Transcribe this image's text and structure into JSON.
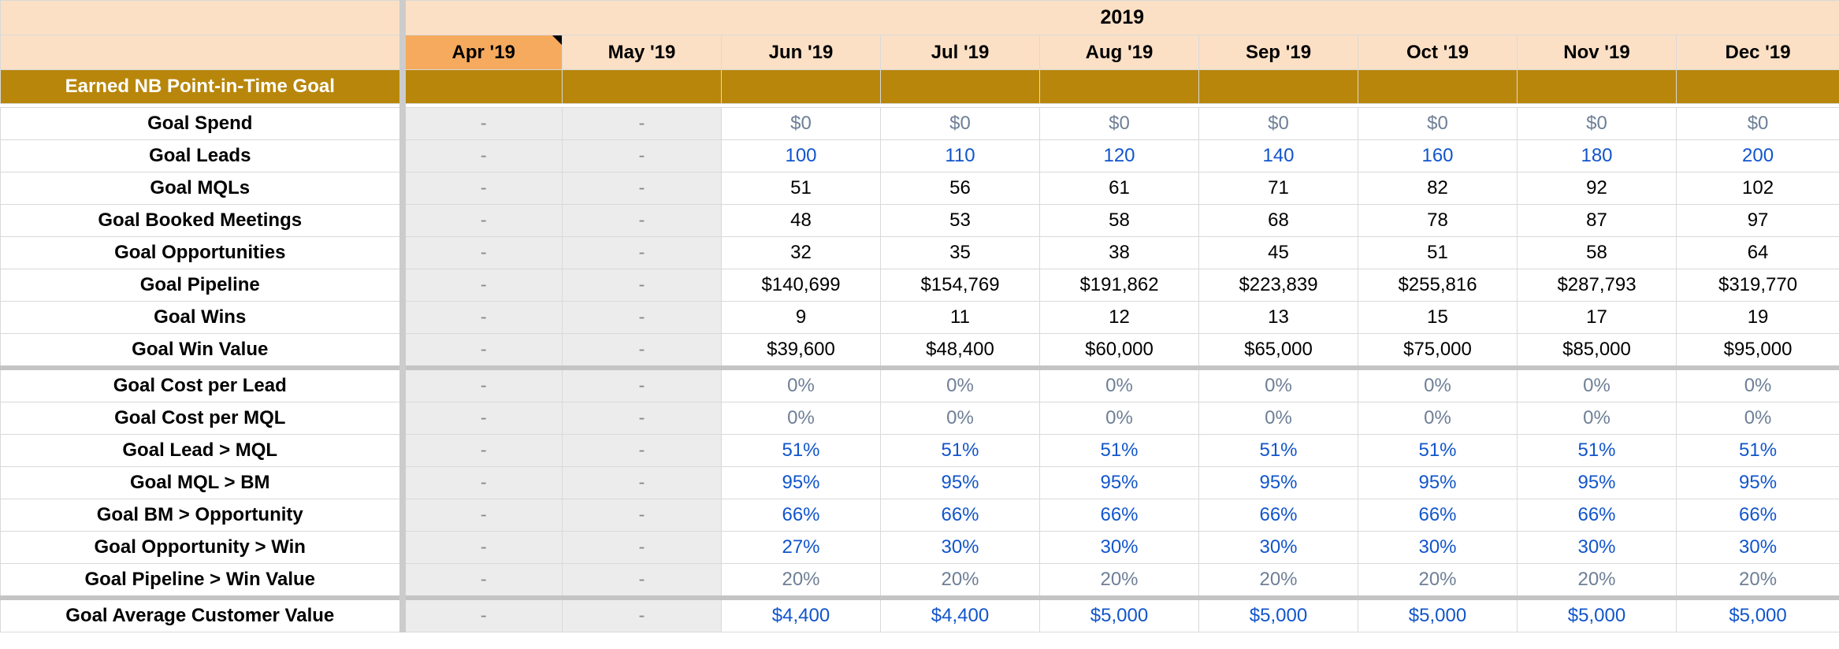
{
  "header": {
    "year": "2019",
    "months": [
      "Apr '19",
      "May '19",
      "Jun '19",
      "Jul '19",
      "Aug '19",
      "Sep '19",
      "Oct '19",
      "Nov '19",
      "Dec '19"
    ]
  },
  "section": {
    "title": "Earned NB Point-in-Time Goal"
  },
  "placeholder": "-",
  "rows": [
    {
      "label": "Goal Spend",
      "color": "grey",
      "values": [
        "$0",
        "$0",
        "$0",
        "$0",
        "$0",
        "$0",
        "$0"
      ]
    },
    {
      "label": "Goal Leads",
      "color": "blue",
      "values": [
        "100",
        "110",
        "120",
        "140",
        "160",
        "180",
        "200"
      ]
    },
    {
      "label": "Goal MQLs",
      "color": "black",
      "values": [
        "51",
        "56",
        "61",
        "71",
        "82",
        "92",
        "102"
      ]
    },
    {
      "label": "Goal Booked Meetings",
      "color": "black",
      "values": [
        "48",
        "53",
        "58",
        "68",
        "78",
        "87",
        "97"
      ]
    },
    {
      "label": "Goal Opportunities",
      "color": "black",
      "values": [
        "32",
        "35",
        "38",
        "45",
        "51",
        "58",
        "64"
      ]
    },
    {
      "label": "Goal Pipeline",
      "color": "black",
      "values": [
        "$140,699",
        "$154,769",
        "$191,862",
        "$223,839",
        "$255,816",
        "$287,793",
        "$319,770"
      ]
    },
    {
      "label": "Goal Wins",
      "color": "black",
      "values": [
        "9",
        "11",
        "12",
        "13",
        "15",
        "17",
        "19"
      ]
    },
    {
      "label": "Goal Win Value",
      "color": "black",
      "values": [
        "$39,600",
        "$48,400",
        "$60,000",
        "$65,000",
        "$75,000",
        "$85,000",
        "$95,000"
      ]
    },
    {
      "label": "Goal Cost per Lead",
      "color": "grey",
      "values": [
        "0%",
        "0%",
        "0%",
        "0%",
        "0%",
        "0%",
        "0%"
      ]
    },
    {
      "label": "Goal Cost per MQL",
      "color": "grey",
      "values": [
        "0%",
        "0%",
        "0%",
        "0%",
        "0%",
        "0%",
        "0%"
      ]
    },
    {
      "label": "Goal Lead > MQL",
      "color": "blue",
      "values": [
        "51%",
        "51%",
        "51%",
        "51%",
        "51%",
        "51%",
        "51%"
      ]
    },
    {
      "label": "Goal MQL > BM",
      "color": "blue",
      "values": [
        "95%",
        "95%",
        "95%",
        "95%",
        "95%",
        "95%",
        "95%"
      ]
    },
    {
      "label": "Goal BM > Opportunity",
      "color": "blue",
      "values": [
        "66%",
        "66%",
        "66%",
        "66%",
        "66%",
        "66%",
        "66%"
      ]
    },
    {
      "label": "Goal Opportunity > Win",
      "color": "blue",
      "values": [
        "27%",
        "30%",
        "30%",
        "30%",
        "30%",
        "30%",
        "30%"
      ]
    },
    {
      "label": "Goal Pipeline > Win Value",
      "color": "grey",
      "values": [
        "20%",
        "20%",
        "20%",
        "20%",
        "20%",
        "20%",
        "20%"
      ]
    },
    {
      "label": "Goal Average Customer Value",
      "color": "blue",
      "values": [
        "$4,400",
        "$4,400",
        "$5,000",
        "$5,000",
        "$5,000",
        "$5,000",
        "$5,000"
      ]
    }
  ],
  "colors": {
    "header_bg": "#fce0c5",
    "current_month_bg": "#f6aa5d",
    "section_bg": "#b8860b",
    "input_blue": "#1155cc",
    "muted_grey": "#6e7f96",
    "past_col_bg": "#ececec"
  }
}
